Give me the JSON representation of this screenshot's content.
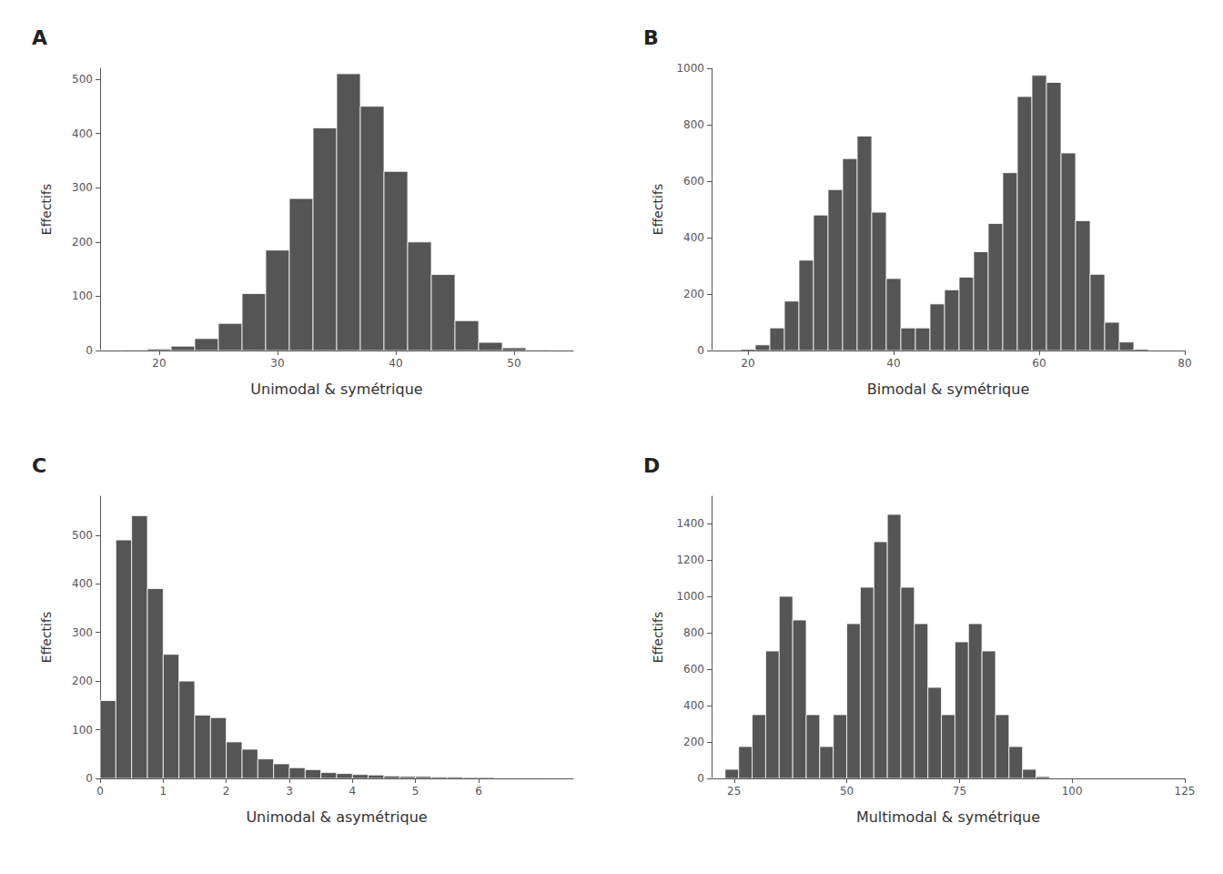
{
  "chart_data": [
    {
      "type": "histogram",
      "title": "A",
      "xlabel": "Unimodal & symétrique",
      "ylabel": "Effectifs",
      "color": "#555555",
      "grid": false,
      "bins": [
        15,
        17,
        19,
        21,
        23,
        25,
        27,
        29,
        31,
        33,
        35,
        37,
        39,
        41,
        43,
        45,
        47,
        49,
        51,
        53,
        55
      ],
      "values": [
        0,
        1,
        3,
        8,
        22,
        50,
        105,
        185,
        280,
        410,
        510,
        450,
        330,
        200,
        140,
        55,
        15,
        5,
        1,
        0
      ],
      "xlim": [
        15,
        55
      ],
      "xticks": [
        20,
        30,
        40,
        50
      ],
      "ylim": [
        0,
        520
      ],
      "yticks": [
        0,
        100,
        200,
        300,
        400,
        500
      ]
    },
    {
      "type": "histogram",
      "title": "B",
      "xlabel": "Bimodal & symétrique",
      "ylabel": "Effectifs",
      "color": "#555555",
      "grid": false,
      "bins": [
        15,
        17,
        19,
        21,
        23,
        25,
        27,
        29,
        31,
        33,
        35,
        37,
        39,
        41,
        43,
        45,
        47,
        49,
        51,
        53,
        55,
        57,
        59,
        61,
        63,
        65,
        67,
        69,
        71,
        73,
        75,
        77,
        79
      ],
      "values": [
        0,
        0,
        5,
        20,
        80,
        175,
        320,
        480,
        570,
        680,
        760,
        490,
        255,
        80,
        80,
        165,
        215,
        260,
        350,
        450,
        630,
        900,
        975,
        950,
        700,
        460,
        270,
        100,
        30,
        5,
        0,
        0
      ],
      "xlim": [
        15,
        80
      ],
      "xticks": [
        20,
        40,
        60,
        80
      ],
      "ylim": [
        0,
        1000
      ],
      "yticks": [
        0,
        200,
        400,
        600,
        800,
        1000
      ]
    },
    {
      "type": "histogram",
      "title": "C",
      "xlabel": "Unimodal & asymétrique",
      "ylabel": "Effectifs",
      "color": "#555555",
      "grid": false,
      "bins": [
        0.0,
        0.25,
        0.5,
        0.75,
        1.0,
        1.25,
        1.5,
        1.75,
        2.0,
        2.25,
        2.5,
        2.75,
        3.0,
        3.25,
        3.5,
        3.75,
        4.0,
        4.25,
        4.5,
        4.75,
        5.0,
        5.25,
        5.5,
        5.75,
        6.0,
        6.25,
        6.5,
        6.75,
        7.0,
        7.25,
        7.5
      ],
      "values": [
        160,
        490,
        540,
        390,
        255,
        200,
        130,
        125,
        75,
        60,
        40,
        30,
        22,
        18,
        12,
        10,
        8,
        7,
        5,
        4,
        4,
        3,
        3,
        2,
        2,
        1,
        1,
        1,
        0,
        0
      ],
      "xlim": [
        0,
        7.5
      ],
      "xticks": [
        0,
        1,
        2,
        3,
        4,
        5,
        6
      ],
      "ylim": [
        0,
        580
      ],
      "yticks": [
        0,
        100,
        200,
        300,
        400,
        500
      ]
    },
    {
      "type": "histogram",
      "title": "D",
      "xlabel": "Multimodal & symétrique",
      "ylabel": "Effectifs",
      "color": "#555555",
      "grid": false,
      "bins": [
        20,
        23,
        26,
        29,
        32,
        35,
        38,
        41,
        44,
        47,
        50,
        53,
        56,
        59,
        62,
        65,
        68,
        71,
        74,
        77,
        80,
        83,
        86,
        89,
        92,
        95,
        98,
        101
      ],
      "values": [
        0,
        50,
        175,
        350,
        700,
        1000,
        870,
        350,
        175,
        350,
        850,
        1050,
        1300,
        1450,
        1050,
        850,
        500,
        350,
        750,
        850,
        700,
        350,
        175,
        50,
        10,
        0,
        0
      ],
      "xlim": [
        20,
        125
      ],
      "xticks": [
        25,
        50,
        75,
        100,
        125
      ],
      "ylim": [
        0,
        1550
      ],
      "yticks": [
        0,
        200,
        400,
        600,
        800,
        1000,
        1200,
        1400
      ]
    }
  ]
}
